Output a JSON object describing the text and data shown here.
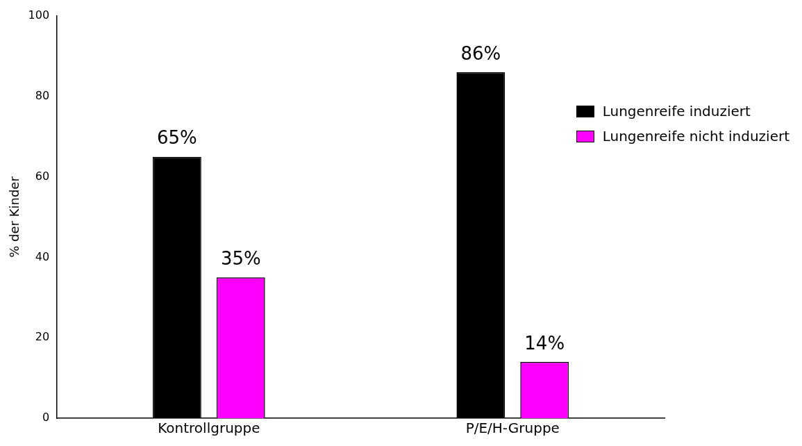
{
  "chart_data": {
    "type": "bar",
    "ylabel": "% der Kinder",
    "categories": [
      "Kontrollgruppe",
      "P/E/H-Gruppe"
    ],
    "series": [
      {
        "name": "Lungenreife induziert",
        "color": "#000000",
        "values": [
          65,
          86
        ],
        "value_labels": [
          "65%",
          "86%"
        ]
      },
      {
        "name": "Lungenreife nicht induziert",
        "color": "#ff00ff",
        "values": [
          35,
          14
        ],
        "value_labels": [
          "35%",
          "14%"
        ]
      }
    ],
    "ylim": [
      0,
      100
    ],
    "yticks": [
      0,
      20,
      40,
      60,
      80,
      100
    ],
    "grid": false,
    "legend": "top right"
  }
}
